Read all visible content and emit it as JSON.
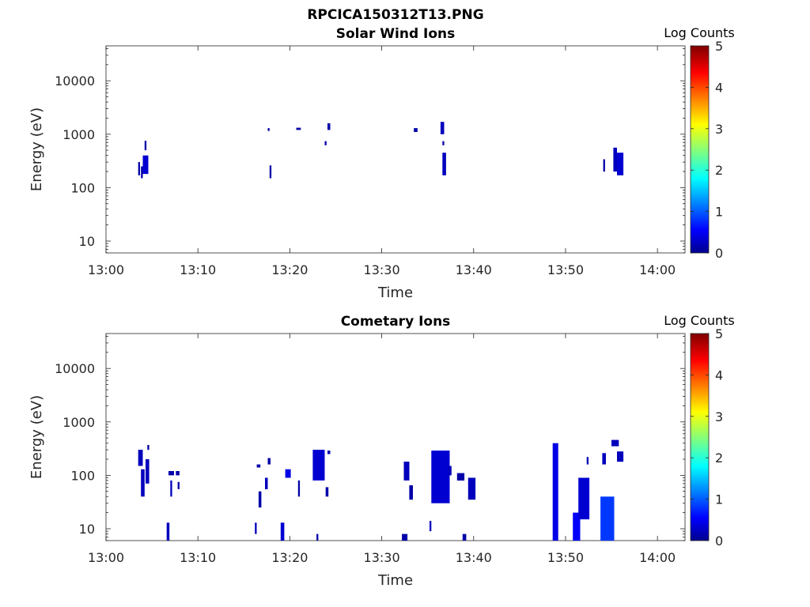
{
  "figure": {
    "title": "RPCICA150312T13.PNG"
  },
  "colorbar": {
    "label": "Log Counts",
    "range": [
      0,
      5
    ],
    "ticks": [
      "0",
      "1",
      "2",
      "3",
      "4",
      "5"
    ],
    "colormap": "jet"
  },
  "chart_data": [
    {
      "type": "heatmap",
      "title": "Solar Wind Ions",
      "xlabel": "Time",
      "ylabel": "Energy (eV)",
      "x_ticks": [
        "13:00",
        "13:10",
        "13:20",
        "13:30",
        "13:40",
        "13:50",
        "14:00"
      ],
      "x_range_minutes": [
        0,
        63
      ],
      "y_scale": "log",
      "y_ticks": [
        "10",
        "100",
        "1000",
        "10000"
      ],
      "y_range_eV": [
        6,
        45000
      ],
      "value_scale": "log counts 0-5",
      "cells": [
        {
          "t": [
            3.5,
            3.7
          ],
          "e": [
            170,
            300
          ],
          "v": 0.2
        },
        {
          "t": [
            3.8,
            4.0
          ],
          "e": [
            150,
            250
          ],
          "v": 0.2
        },
        {
          "t": [
            4.0,
            4.6
          ],
          "e": [
            180,
            400
          ],
          "v": 0.4
        },
        {
          "t": [
            4.2,
            4.4
          ],
          "e": [
            500,
            750
          ],
          "v": 0.2
        },
        {
          "t": [
            17.6,
            17.8
          ],
          "e": [
            1150,
            1300
          ],
          "v": 0.2
        },
        {
          "t": [
            17.8,
            18.0
          ],
          "e": [
            150,
            260
          ],
          "v": 0.2
        },
        {
          "t": [
            20.7,
            21.2
          ],
          "e": [
            1200,
            1320
          ],
          "v": 0.2
        },
        {
          "t": [
            23.8,
            24.0
          ],
          "e": [
            620,
            740
          ],
          "v": 0.2
        },
        {
          "t": [
            24.1,
            24.4
          ],
          "e": [
            1200,
            1600
          ],
          "v": 0.2
        },
        {
          "t": [
            33.5,
            33.9
          ],
          "e": [
            1100,
            1300
          ],
          "v": 0.2
        },
        {
          "t": [
            36.4,
            36.8
          ],
          "e": [
            1000,
            1700
          ],
          "v": 0.3
        },
        {
          "t": [
            36.6,
            36.8
          ],
          "e": [
            620,
            740
          ],
          "v": 0.2
        },
        {
          "t": [
            36.6,
            37.0
          ],
          "e": [
            170,
            450
          ],
          "v": 0.3
        },
        {
          "t": [
            54.1,
            54.3
          ],
          "e": [
            200,
            340
          ],
          "v": 0.2
        },
        {
          "t": [
            55.2,
            55.6
          ],
          "e": [
            200,
            560
          ],
          "v": 0.3
        },
        {
          "t": [
            55.6,
            56.3
          ],
          "e": [
            170,
            450
          ],
          "v": 0.4
        }
      ]
    },
    {
      "type": "heatmap",
      "title": "Cometary Ions",
      "xlabel": "Time",
      "ylabel": "Energy (eV)",
      "x_ticks": [
        "13:00",
        "13:10",
        "13:20",
        "13:30",
        "13:40",
        "13:50",
        "14:00"
      ],
      "x_range_minutes": [
        0,
        63
      ],
      "y_scale": "log",
      "y_ticks": [
        "10",
        "100",
        "1000",
        "10000"
      ],
      "y_range_eV": [
        6,
        45000
      ],
      "value_scale": "log counts 0-5",
      "cells": [
        {
          "t": [
            3.5,
            4.0
          ],
          "e": [
            150,
            300
          ],
          "v": 0.3
        },
        {
          "t": [
            3.8,
            4.2
          ],
          "e": [
            40,
            130
          ],
          "v": 0.3
        },
        {
          "t": [
            4.3,
            4.7
          ],
          "e": [
            70,
            200
          ],
          "v": 0.3
        },
        {
          "t": [
            4.5,
            4.7
          ],
          "e": [
            300,
            370
          ],
          "v": 0.2
        },
        {
          "t": [
            6.6,
            6.9
          ],
          "e": [
            6,
            13
          ],
          "v": 0.3
        },
        {
          "t": [
            6.8,
            7.4
          ],
          "e": [
            100,
            120
          ],
          "v": 0.2
        },
        {
          "t": [
            7.0,
            7.2
          ],
          "e": [
            40,
            80
          ],
          "v": 0.3
        },
        {
          "t": [
            7.6,
            8.0
          ],
          "e": [
            100,
            120
          ],
          "v": 0.2
        },
        {
          "t": [
            7.8,
            8.0
          ],
          "e": [
            55,
            75
          ],
          "v": 0.2
        },
        {
          "t": [
            16.2,
            16.4
          ],
          "e": [
            8,
            13
          ],
          "v": 0.3
        },
        {
          "t": [
            16.4,
            16.8
          ],
          "e": [
            140,
            160
          ],
          "v": 0.2
        },
        {
          "t": [
            16.6,
            16.9
          ],
          "e": [
            25,
            50
          ],
          "v": 0.2
        },
        {
          "t": [
            17.3,
            17.6
          ],
          "e": [
            55,
            90
          ],
          "v": 0.3
        },
        {
          "t": [
            17.6,
            17.9
          ],
          "e": [
            160,
            210
          ],
          "v": 0.2
        },
        {
          "t": [
            19.0,
            19.4
          ],
          "e": [
            6,
            13
          ],
          "v": 0.4
        },
        {
          "t": [
            19.5,
            20.1
          ],
          "e": [
            90,
            130
          ],
          "v": 0.5
        },
        {
          "t": [
            20.9,
            21.1
          ],
          "e": [
            40,
            80
          ],
          "v": 0.2
        },
        {
          "t": [
            22.5,
            23.8
          ],
          "e": [
            80,
            300
          ],
          "v": 0.4
        },
        {
          "t": [
            22.9,
            23.1
          ],
          "e": [
            6,
            8
          ],
          "v": 0.2
        },
        {
          "t": [
            23.9,
            24.2
          ],
          "e": [
            40,
            60
          ],
          "v": 0.2
        },
        {
          "t": [
            24.1,
            24.4
          ],
          "e": [
            250,
            290
          ],
          "v": 0.2
        },
        {
          "t": [
            32.2,
            32.8
          ],
          "e": [
            6,
            8
          ],
          "v": 0.2
        },
        {
          "t": [
            32.4,
            33.0
          ],
          "e": [
            80,
            180
          ],
          "v": 0.3
        },
        {
          "t": [
            33.0,
            33.4
          ],
          "e": [
            35,
            65
          ],
          "v": 0.2
        },
        {
          "t": [
            35.2,
            35.4
          ],
          "e": [
            9,
            14
          ],
          "v": 0.3
        },
        {
          "t": [
            35.4,
            37.4
          ],
          "e": [
            30,
            290
          ],
          "v": 0.4
        },
        {
          "t": [
            37.2,
            37.6
          ],
          "e": [
            100,
            150
          ],
          "v": 0.3
        },
        {
          "t": [
            38.2,
            39.0
          ],
          "e": [
            80,
            110
          ],
          "v": 0.2
        },
        {
          "t": [
            38.8,
            39.2
          ],
          "e": [
            6,
            8
          ],
          "v": 0.2
        },
        {
          "t": [
            39.4,
            40.2
          ],
          "e": [
            35,
            90
          ],
          "v": 0.3
        },
        {
          "t": [
            48.6,
            49.2
          ],
          "e": [
            6,
            400
          ],
          "v": 0.5
        },
        {
          "t": [
            50.8,
            51.6
          ],
          "e": [
            6,
            20
          ],
          "v": 0.6
        },
        {
          "t": [
            51.4,
            52.6
          ],
          "e": [
            15,
            90
          ],
          "v": 0.4
        },
        {
          "t": [
            52.3,
            52.5
          ],
          "e": [
            160,
            220
          ],
          "v": 0.3
        },
        {
          "t": [
            53.8,
            55.3
          ],
          "e": [
            6,
            40
          ],
          "v": 0.9
        },
        {
          "t": [
            54.0,
            54.4
          ],
          "e": [
            160,
            260
          ],
          "v": 0.3
        },
        {
          "t": [
            55.0,
            55.8
          ],
          "e": [
            350,
            460
          ],
          "v": 0.3
        },
        {
          "t": [
            55.6,
            56.3
          ],
          "e": [
            180,
            280
          ],
          "v": 0.3
        }
      ]
    }
  ]
}
